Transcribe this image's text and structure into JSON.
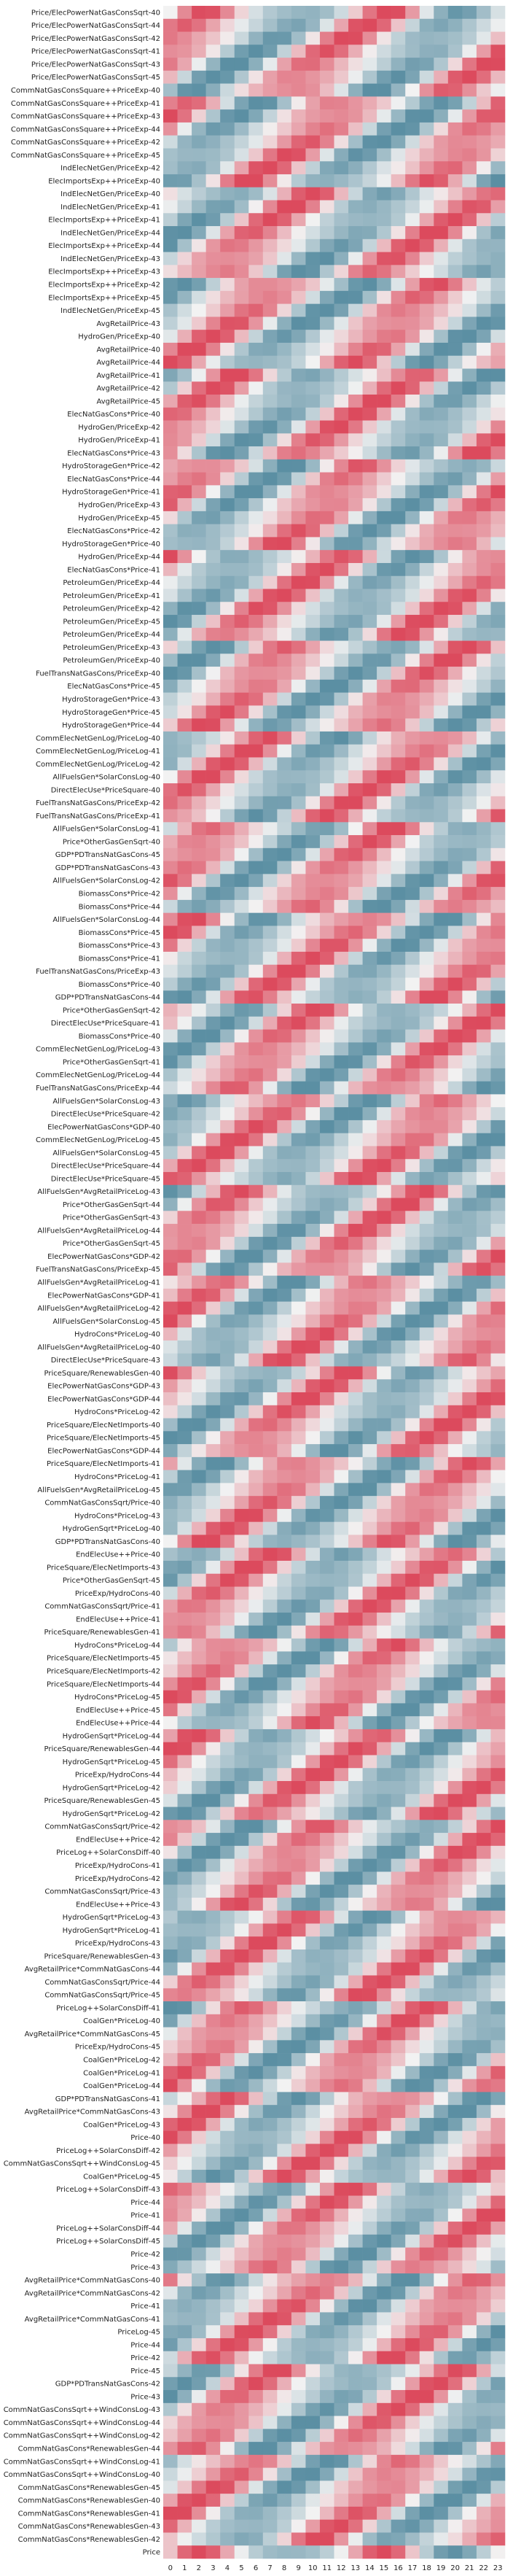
{
  "chart_data": {
    "type": "heatmap",
    "title": "",
    "xlabel": "",
    "ylabel": "",
    "colormap": {
      "low": "#5b8fa3",
      "mid": "#f2f2f2",
      "high": "#dc4a5d"
    },
    "x": [
      "0",
      "1",
      "2",
      "3",
      "4",
      "5",
      "6",
      "7",
      "8",
      "9",
      "10",
      "11",
      "12",
      "13",
      "14",
      "15",
      "16",
      "17",
      "18",
      "19",
      "20",
      "21",
      "22",
      "23"
    ],
    "y": [
      "Price/ElecPowerNatGasConsSqrt-40",
      "Price/ElecPowerNatGasConsSqrt-44",
      "Price/ElecPowerNatGasConsSqrt-42",
      "Price/ElecPowerNatGasConsSqrt-41",
      "Price/ElecPowerNatGasConsSqrt-43",
      "Price/ElecPowerNatGasConsSqrt-45",
      "CommNatGasConsSquare++PriceExp-40",
      "CommNatGasConsSquare++PriceExp-41",
      "CommNatGasConsSquare++PriceExp-43",
      "CommNatGasConsSquare++PriceExp-44",
      "CommNatGasConsSquare++PriceExp-42",
      "CommNatGasConsSquare++PriceExp-45",
      "IndElecNetGen/PriceExp-42",
      "ElecImportsExp++PriceExp-40",
      "IndElecNetGen/PriceExp-40",
      "IndElecNetGen/PriceExp-41",
      "ElecImportsExp++PriceExp-41",
      "IndElecNetGen/PriceExp-44",
      "ElecImportsExp++PriceExp-44",
      "IndElecNetGen/PriceExp-43",
      "ElecImportsExp++PriceExp-43",
      "ElecImportsExp++PriceExp-42",
      "ElecImportsExp++PriceExp-45",
      "IndElecNetGen/PriceExp-45",
      "AvgRetailPrice-43",
      "HydroGen/PriceExp-40",
      "AvgRetailPrice-40",
      "AvgRetailPrice-44",
      "AvgRetailPrice-41",
      "AvgRetailPrice-42",
      "AvgRetailPrice-45",
      "ElecNatGasCons*Price-40",
      "HydroGen/PriceExp-42",
      "HydroGen/PriceExp-41",
      "ElecNatGasCons*Price-43",
      "HydroStorageGen*Price-42",
      "ElecNatGasCons*Price-44",
      "HydroStorageGen*Price-41",
      "HydroGen/PriceExp-43",
      "HydroGen/PriceExp-45",
      "ElecNatGasCons*Price-42",
      "HydroStorageGen*Price-40",
      "HydroGen/PriceExp-44",
      "ElecNatGasCons*Price-41",
      "PetroleumGen/PriceExp-44",
      "PetroleumGen/PriceExp-41",
      "PetroleumGen/PriceExp-42",
      "PetroleumGen/PriceExp-45",
      "PetroleumGen/PriceExp-44",
      "PetroleumGen/PriceExp-43",
      "PetroleumGen/PriceExp-40",
      "FuelTransNatGasCons/PriceExp-40",
      "ElecNatGasCons*Price-45",
      "HydroStorageGen*Price-43",
      "HydroStorageGen*Price-45",
      "HydroStorageGen*Price-44",
      "CommElecNetGenLog/PriceLog-40",
      "CommElecNetGenLog/PriceLog-41",
      "CommElecNetGenLog/PriceLog-42",
      "AllFuelsGen*SolarConsLog-40",
      "DirectElecUse*PriceSquare-40",
      "FuelTransNatGasCons/PriceExp-42",
      "FuelTransNatGasCons/PriceExp-41",
      "AllFuelsGen*SolarConsLog-41",
      "Price*OtherGasGenSqrt-40",
      "GDP*PDTransNatGasCons-45",
      "GDP*PDTransNatGasCons-43",
      "AllFuelsGen*SolarConsLog-42",
      "BiomassCons*Price-42",
      "BiomassCons*Price-44",
      "AllFuelsGen*SolarConsLog-44",
      "BiomassCons*Price-45",
      "BiomassCons*Price-43",
      "BiomassCons*Price-41",
      "FuelTransNatGasCons/PriceExp-43",
      "BiomassCons*Price-40",
      "GDP*PDTransNatGasCons-44",
      "Price*OtherGasGenSqrt-42",
      "DirectElecUse*PriceSquare-41",
      "BiomassCons*Price-40",
      "CommElecNetGenLog/PriceLog-43",
      "Price*OtherGasGenSqrt-41",
      "CommElecNetGenLog/PriceLog-44",
      "FuelTransNatGasCons/PriceExp-44",
      "AllFuelsGen*SolarConsLog-43",
      "DirectElecUse*PriceSquare-42",
      "ElecPowerNatGasCons*GDP-40",
      "CommElecNetGenLog/PriceLog-45",
      "AllFuelsGen*SolarConsLog-45",
      "DirectElecUse*PriceSquare-44",
      "DirectElecUse*PriceSquare-45",
      "AllFuelsGen*AvgRetailPriceLog-43",
      "Price*OtherGasGenSqrt-44",
      "Price*OtherGasGenSqrt-43",
      "AllFuelsGen*AvgRetailPriceLog-44",
      "Price*OtherGasGenSqrt-45",
      "ElecPowerNatGasCons*GDP-42",
      "FuelTransNatGasCons/PriceExp-45",
      "AllFuelsGen*AvgRetailPriceLog-41",
      "ElecPowerNatGasCons*GDP-41",
      "AllFuelsGen*AvgRetailPriceLog-42",
      "AllFuelsGen*SolarConsLog-45",
      "HydroCons*PriceLog-40",
      "AllFuelsGen*AvgRetailPriceLog-40",
      "DirectElecUse*PriceSquare-43",
      "PriceSquare/RenewablesGen-40",
      "ElecPowerNatGasCons*GDP-43",
      "ElecPowerNatGasCons*GDP-44",
      "HydroCons*PriceLog-42",
      "PriceSquare/ElecNetImports-40",
      "PriceSquare/ElecNetImports-45",
      "ElecPowerNatGasCons*GDP-44",
      "PriceSquare/ElecNetImports-41",
      "HydroCons*PriceLog-41",
      "AllFuelsGen*AvgRetailPriceLog-45",
      "CommNatGasConsSqrt/Price-40",
      "HydroCons*PriceLog-43",
      "HydroGenSqrt*PriceLog-40",
      "GDP*PDTransNatGasCons-40",
      "EndElecUse++Price-40",
      "PriceSquare/ElecNetImports-43",
      "Price*OtherGasGenSqrt-45",
      "PriceExp/HydroCons-40",
      "CommNatGasConsSqrt/Price-41",
      "EndElecUse++Price-41",
      "PriceSquare/RenewablesGen-41",
      "HydroCons*PriceLog-44",
      "PriceSquare/ElecNetImports-45",
      "PriceSquare/ElecNetImports-42",
      "PriceSquare/ElecNetImports-44",
      "HydroCons*PriceLog-45",
      "EndElecUse++Price-45",
      "EndElecUse++Price-44",
      "HydroGenSqrt*PriceLog-44",
      "PriceSquare/RenewablesGen-44",
      "HydroGenSqrt*PriceLog-45",
      "PriceExp/HydroCons-44",
      "HydroGenSqrt*PriceLog-42",
      "PriceSquare/RenewablesGen-45",
      "HydroGenSqrt*PriceLog-42",
      "CommNatGasConsSqrt/Price-42",
      "EndElecUse++Price-42",
      "PriceLog++SolarConsDiff-40",
      "PriceExp/HydroCons-41",
      "PriceExp/HydroCons-42",
      "CommNatGasConsSqrt/Price-43",
      "EndElecUse++Price-43",
      "HydroGenSqrt*PriceLog-43",
      "HydroGenSqrt*PriceLog-41",
      "PriceExp/HydroCons-43",
      "PriceSquare/RenewablesGen-43",
      "AvgRetailPrice*CommNatGasCons-44",
      "CommNatGasConsSqrt/Price-44",
      "CommNatGasConsSqrt/Price-45",
      "PriceLog++SolarConsDiff-41",
      "CoalGen*PriceLog-40",
      "AvgRetailPrice*CommNatGasCons-45",
      "PriceExp/HydroCons-45",
      "CoalGen*PriceLog-42",
      "CoalGen*PriceLog-41",
      "CoalGen*PriceLog-44",
      "GDP*PDTransNatGasCons-41",
      "AvgRetailPrice*CommNatGasCons-43",
      "CoalGen*PriceLog-43",
      "Price-40",
      "PriceLog++SolarConsDiff-42",
      "CommNatGasConsSqrt++WindConsLog-45",
      "CoalGen*PriceLog-45",
      "PriceLog++SolarConsDiff-43",
      "Price-44",
      "Price-41",
      "PriceLog++SolarConsDiff-44",
      "PriceLog++SolarConsDiff-45",
      "Price-42",
      "Price-43",
      "AvgRetailPrice*CommNatGasCons-40",
      "AvgRetailPrice*CommNatGasCons-42",
      "Price-41",
      "AvgRetailPrice*CommNatGasCons-41",
      "PriceLog-45",
      "Price-44",
      "Price-42",
      "Price-45",
      "GDP*PDTransNatGasCons-42",
      "Price-43",
      "CommNatGasConsSqrt++WindConsLog-43",
      "CommNatGasConsSqrt++WindConsLog-44",
      "CommNatGasConsSqrt++WindConsLog-42",
      "CommNatGasCons*RenewablesGen-44",
      "CommNatGasConsSqrt++WindConsLog-41",
      "CommNatGasConsSqrt++WindConsLog-40",
      "CommNatGasCons*RenewablesGen-45",
      "CommNatGasCons*RenewablesGen-40",
      "CommNatGasCons*RenewablesGen-41",
      "CommNatGasCons*RenewablesGen-43",
      "CommNatGasCons*RenewablesGen-42",
      "Price"
    ],
    "values_note": "",
    "vmin": -1,
    "vmax": 1,
    "legend": "none",
    "grid": false
  }
}
